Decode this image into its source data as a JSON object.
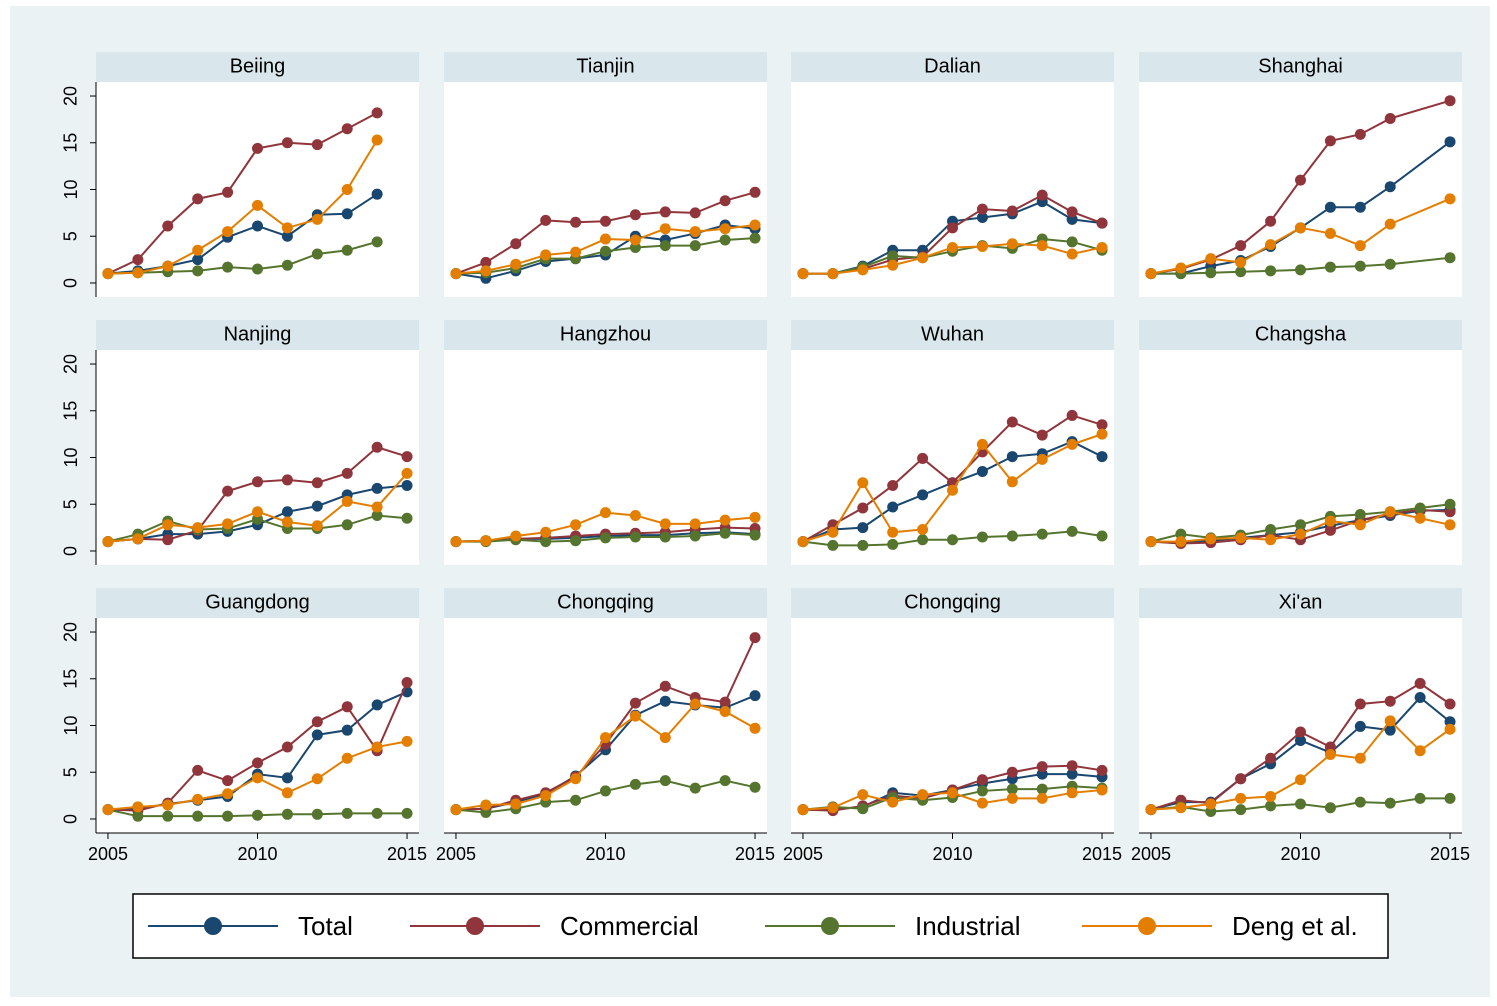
{
  "chart_data": [
    {
      "type": "line",
      "title": "Beiing",
      "x": [
        2005,
        2006,
        2007,
        2008,
        2009,
        2010,
        2011,
        2012,
        2013,
        2014
      ],
      "xlim": [
        2004.6,
        2015.4
      ],
      "ylim": [
        -1.5,
        21.5
      ],
      "yticks": [
        0,
        5,
        10,
        15,
        20
      ],
      "series": [
        {
          "name": "Total",
          "color": "#1a476f",
          "values": [
            1,
            1.3,
            1.8,
            2.5,
            4.9,
            6.1,
            5.0,
            7.3,
            7.4,
            9.5
          ]
        },
        {
          "name": "Commercial",
          "color": "#90353b",
          "values": [
            1,
            2.5,
            6.1,
            9.0,
            9.7,
            14.4,
            15.0,
            14.8,
            16.5,
            18.2
          ]
        },
        {
          "name": "Industrial",
          "color": "#55752f",
          "values": [
            1,
            1.1,
            1.2,
            1.3,
            1.7,
            1.5,
            1.9,
            3.1,
            3.5,
            4.4
          ]
        },
        {
          "name": "Deng et al.",
          "color": "#e37e00",
          "values": [
            1,
            1.1,
            1.8,
            3.5,
            5.5,
            8.3,
            5.9,
            6.8,
            10.0,
            15.3
          ]
        }
      ]
    },
    {
      "type": "line",
      "title": "Tianjin",
      "x": [
        2005,
        2006,
        2007,
        2008,
        2009,
        2010,
        2011,
        2012,
        2013,
        2014,
        2015
      ],
      "xlim": [
        2004.6,
        2015.4
      ],
      "ylim": [
        -1.5,
        21.5
      ],
      "series": [
        {
          "name": "Total",
          "color": "#1a476f",
          "values": [
            1,
            0.5,
            1.3,
            2.3,
            2.6,
            3.0,
            5.0,
            4.6,
            5.3,
            6.2,
            5.8
          ]
        },
        {
          "name": "Commercial",
          "color": "#90353b",
          "values": [
            1,
            2.2,
            4.2,
            6.7,
            6.5,
            6.6,
            7.3,
            7.6,
            7.5,
            8.8,
            9.7
          ]
        },
        {
          "name": "Industrial",
          "color": "#55752f",
          "values": [
            1,
            1.1,
            1.6,
            2.6,
            2.6,
            3.4,
            3.8,
            4.0,
            4.0,
            4.6,
            4.8
          ]
        },
        {
          "name": "Deng et al.",
          "color": "#e37e00",
          "values": [
            1,
            1.3,
            2.0,
            3.0,
            3.3,
            4.7,
            4.6,
            5.8,
            5.5,
            5.8,
            6.2
          ]
        }
      ]
    },
    {
      "type": "line",
      "title": "Dalian",
      "x": [
        2005,
        2006,
        2007,
        2008,
        2009,
        2010,
        2011,
        2012,
        2013,
        2014,
        2015
      ],
      "xlim": [
        2004.6,
        2015.4
      ],
      "ylim": [
        -1.5,
        21.5
      ],
      "series": [
        {
          "name": "Total",
          "color": "#1a476f",
          "values": [
            1,
            1,
            1.8,
            3.5,
            3.5,
            6.6,
            7.0,
            7.4,
            8.7,
            6.8,
            6.4
          ]
        },
        {
          "name": "Commercial",
          "color": "#90353b",
          "values": [
            1,
            1,
            1.5,
            2.5,
            2.8,
            5.9,
            7.9,
            7.7,
            9.4,
            7.6,
            6.4
          ]
        },
        {
          "name": "Industrial",
          "color": "#55752f",
          "values": [
            1,
            1,
            1.7,
            2.9,
            2.7,
            3.4,
            4.0,
            3.7,
            4.7,
            4.4,
            3.5
          ]
        },
        {
          "name": "Deng et al.",
          "color": "#e37e00",
          "values": [
            1,
            1,
            1.4,
            1.9,
            2.7,
            3.8,
            3.9,
            4.2,
            4.0,
            3.1,
            3.8
          ]
        }
      ]
    },
    {
      "type": "line",
      "title": "Shanghai",
      "x": [
        2005,
        2006,
        2007,
        2008,
        2009,
        2010,
        2011,
        2012,
        2013,
        2015
      ],
      "xlim": [
        2004.6,
        2015.4
      ],
      "ylim": [
        -1.5,
        21.5
      ],
      "series": [
        {
          "name": "Total",
          "color": "#1a476f",
          "values": [
            1,
            1.0,
            1.8,
            2.4,
            3.9,
            5.9,
            8.1,
            8.1,
            10.3,
            15.1
          ]
        },
        {
          "name": "Commercial",
          "color": "#90353b",
          "values": [
            1,
            1.5,
            2.5,
            4.0,
            6.6,
            11.0,
            15.2,
            15.9,
            17.6,
            19.5
          ]
        },
        {
          "name": "Industrial",
          "color": "#55752f",
          "values": [
            1,
            1.0,
            1.1,
            1.2,
            1.3,
            1.4,
            1.7,
            1.8,
            2.0,
            2.7
          ]
        },
        {
          "name": "Deng et al.",
          "color": "#e37e00",
          "values": [
            1,
            1.6,
            2.6,
            2.2,
            4.1,
            5.9,
            5.3,
            4.0,
            6.3,
            9.0
          ]
        }
      ]
    },
    {
      "type": "line",
      "title": "Nanjing",
      "x": [
        2005,
        2006,
        2007,
        2008,
        2009,
        2010,
        2011,
        2012,
        2013,
        2014,
        2015
      ],
      "xlim": [
        2004.6,
        2015.4
      ],
      "ylim": [
        -1.5,
        21.5
      ],
      "yticks": [
        0,
        5,
        10,
        15,
        20
      ],
      "series": [
        {
          "name": "Total",
          "color": "#1a476f",
          "values": [
            1,
            1.3,
            1.8,
            1.8,
            2.1,
            2.8,
            4.2,
            4.8,
            6.0,
            6.7,
            7.0
          ]
        },
        {
          "name": "Commercial",
          "color": "#90353b",
          "values": [
            1,
            1.3,
            1.2,
            2.2,
            6.4,
            7.4,
            7.6,
            7.3,
            8.3,
            11.1,
            10.1
          ]
        },
        {
          "name": "Industrial",
          "color": "#55752f",
          "values": [
            1,
            1.8,
            3.2,
            2.3,
            2.4,
            3.4,
            2.4,
            2.4,
            2.8,
            3.8,
            3.5
          ]
        },
        {
          "name": "Deng et al.",
          "color": "#e37e00",
          "values": [
            1,
            1.3,
            2.8,
            2.5,
            2.9,
            4.2,
            3.1,
            2.7,
            5.3,
            4.7,
            8.3
          ]
        }
      ]
    },
    {
      "type": "line",
      "title": "Hangzhou",
      "x": [
        2005,
        2006,
        2007,
        2008,
        2009,
        2010,
        2011,
        2012,
        2013,
        2014,
        2015
      ],
      "xlim": [
        2004.6,
        2015.4
      ],
      "ylim": [
        -1.5,
        21.5
      ],
      "series": [
        {
          "name": "Total",
          "color": "#1a476f",
          "values": [
            1,
            1.1,
            1.3,
            1.3,
            1.4,
            1.6,
            1.7,
            1.7,
            1.9,
            2.0,
            1.8
          ]
        },
        {
          "name": "Commercial",
          "color": "#90353b",
          "values": [
            1,
            1.1,
            1.3,
            1.4,
            1.6,
            1.8,
            1.9,
            2.0,
            2.3,
            2.5,
            2.4
          ]
        },
        {
          "name": "Industrial",
          "color": "#55752f",
          "values": [
            1,
            1.0,
            1.2,
            1.0,
            1.1,
            1.4,
            1.5,
            1.5,
            1.6,
            1.9,
            1.7
          ]
        },
        {
          "name": "Deng et al.",
          "color": "#e37e00",
          "values": [
            1,
            1.1,
            1.6,
            2.0,
            2.8,
            4.1,
            3.8,
            2.9,
            2.9,
            3.3,
            3.6
          ]
        }
      ]
    },
    {
      "type": "line",
      "title": "Wuhan",
      "x": [
        2005,
        2006,
        2007,
        2008,
        2009,
        2010,
        2011,
        2012,
        2013,
        2014,
        2015
      ],
      "xlim": [
        2004.6,
        2015.4
      ],
      "ylim": [
        -1.5,
        21.5
      ],
      "series": [
        {
          "name": "Total",
          "color": "#1a476f",
          "values": [
            1,
            2.3,
            2.5,
            4.7,
            6.0,
            7.3,
            8.5,
            10.1,
            10.4,
            11.7,
            10.1
          ]
        },
        {
          "name": "Commercial",
          "color": "#90353b",
          "values": [
            1,
            2.8,
            4.6,
            7.0,
            9.9,
            7.3,
            10.6,
            13.8,
            12.4,
            14.5,
            13.5
          ]
        },
        {
          "name": "Industrial",
          "color": "#55752f",
          "values": [
            1,
            0.6,
            0.6,
            0.7,
            1.2,
            1.2,
            1.5,
            1.6,
            1.8,
            2.1,
            1.6
          ]
        },
        {
          "name": "Deng et al.",
          "color": "#e37e00",
          "values": [
            1,
            2.0,
            7.3,
            2.0,
            2.3,
            6.5,
            11.4,
            7.4,
            9.8,
            11.4,
            12.5
          ]
        }
      ]
    },
    {
      "type": "line",
      "title": "Changsha",
      "x": [
        2005,
        2006,
        2007,
        2008,
        2009,
        2010,
        2011,
        2012,
        2013,
        2014,
        2015
      ],
      "xlim": [
        2004.6,
        2015.4
      ],
      "ylim": [
        -1.5,
        21.5
      ],
      "series": [
        {
          "name": "Total",
          "color": "#1a476f",
          "values": [
            1,
            0.9,
            1.1,
            1.4,
            1.7,
            2.0,
            2.7,
            3.3,
            3.8,
            4.3,
            4.4
          ]
        },
        {
          "name": "Commercial",
          "color": "#90353b",
          "values": [
            1,
            0.8,
            0.9,
            1.2,
            1.7,
            1.2,
            2.2,
            3.3,
            4.0,
            4.4,
            4.2
          ]
        },
        {
          "name": "Industrial",
          "color": "#55752f",
          "values": [
            1,
            1.8,
            1.4,
            1.7,
            2.3,
            2.8,
            3.7,
            3.9,
            4.2,
            4.6,
            5.0
          ]
        },
        {
          "name": "Deng et al.",
          "color": "#e37e00",
          "values": [
            1,
            1.0,
            1.3,
            1.4,
            1.2,
            1.8,
            3.2,
            2.8,
            4.2,
            3.5,
            2.8
          ]
        }
      ]
    },
    {
      "type": "line",
      "title": "Guangdong",
      "x": [
        2005,
        2006,
        2007,
        2008,
        2009,
        2010,
        2011,
        2012,
        2013,
        2014,
        2015
      ],
      "xlim": [
        2004.6,
        2015.4
      ],
      "ylim": [
        -1.5,
        21.5
      ],
      "yticks": [
        0,
        5,
        10,
        15,
        20
      ],
      "xticks": [
        2005,
        2010,
        2015
      ],
      "series": [
        {
          "name": "Total",
          "color": "#1a476f",
          "values": [
            1,
            1.1,
            1.6,
            2.0,
            2.4,
            4.8,
            4.4,
            9.0,
            9.5,
            12.2,
            13.6
          ]
        },
        {
          "name": "Commercial",
          "color": "#90353b",
          "values": [
            1,
            0.9,
            1.7,
            5.2,
            4.1,
            6.0,
            7.7,
            10.4,
            12.0,
            7.3,
            14.6
          ]
        },
        {
          "name": "Industrial",
          "color": "#55752f",
          "values": [
            1,
            0.3,
            0.3,
            0.3,
            0.3,
            0.4,
            0.5,
            0.5,
            0.6,
            0.6,
            0.6
          ]
        },
        {
          "name": "Deng et al.",
          "color": "#e37e00",
          "values": [
            1,
            1.3,
            1.5,
            2.1,
            2.7,
            4.4,
            2.8,
            4.3,
            6.5,
            7.7,
            8.3
          ]
        }
      ]
    },
    {
      "type": "line",
      "title": "Chongqing",
      "x": [
        2005,
        2006,
        2007,
        2008,
        2009,
        2010,
        2011,
        2012,
        2013,
        2014,
        2015
      ],
      "xlim": [
        2004.6,
        2015.4
      ],
      "ylim": [
        -1.5,
        21.5
      ],
      "xticks": [
        2005,
        2010,
        2015
      ],
      "series": [
        {
          "name": "Total",
          "color": "#1a476f",
          "values": [
            1,
            1.1,
            1.8,
            2.7,
            4.6,
            7.4,
            11.1,
            12.6,
            12.2,
            11.9,
            13.2
          ]
        },
        {
          "name": "Commercial",
          "color": "#90353b",
          "values": [
            1,
            1.1,
            2.0,
            2.8,
            4.5,
            8.0,
            12.4,
            14.2,
            13.0,
            12.5,
            19.4
          ]
        },
        {
          "name": "Industrial",
          "color": "#55752f",
          "values": [
            1,
            0.7,
            1.1,
            1.8,
            2.0,
            3.0,
            3.7,
            4.1,
            3.3,
            4.1,
            3.4
          ]
        },
        {
          "name": "Deng et al.",
          "color": "#e37e00",
          "values": [
            1,
            1.5,
            1.6,
            2.5,
            4.3,
            8.7,
            11.0,
            8.7,
            12.3,
            11.5,
            9.7
          ]
        }
      ]
    },
    {
      "type": "line",
      "title": "Chongqing",
      "x": [
        2005,
        2006,
        2007,
        2008,
        2009,
        2010,
        2011,
        2012,
        2013,
        2014,
        2015
      ],
      "xlim": [
        2004.6,
        2015.4
      ],
      "ylim": [
        -1.5,
        21.5
      ],
      "xticks": [
        2005,
        2010,
        2015
      ],
      "series": [
        {
          "name": "Total",
          "color": "#1a476f",
          "values": [
            1,
            1.0,
            1.3,
            2.8,
            2.5,
            3.1,
            3.8,
            4.3,
            4.8,
            4.8,
            4.5
          ]
        },
        {
          "name": "Commercial",
          "color": "#90353b",
          "values": [
            1,
            0.9,
            1.4,
            2.5,
            2.2,
            3.1,
            4.2,
            5.0,
            5.6,
            5.7,
            5.2
          ]
        },
        {
          "name": "Industrial",
          "color": "#55752f",
          "values": [
            1,
            1.3,
            1.1,
            2.3,
            2.0,
            2.3,
            3.0,
            3.2,
            3.2,
            3.5,
            3.3
          ]
        },
        {
          "name": "Deng et al.",
          "color": "#e37e00",
          "values": [
            1,
            1.2,
            2.6,
            1.8,
            2.6,
            2.8,
            1.7,
            2.2,
            2.2,
            2.8,
            3.1
          ]
        }
      ]
    },
    {
      "type": "line",
      "title": "Xi'an",
      "x": [
        2005,
        2006,
        2007,
        2008,
        2009,
        2010,
        2011,
        2012,
        2013,
        2014,
        2015
      ],
      "xlim": [
        2004.6,
        2015.4
      ],
      "ylim": [
        -1.5,
        21.5
      ],
      "xticks": [
        2005,
        2010,
        2015
      ],
      "series": [
        {
          "name": "Total",
          "color": "#1a476f",
          "values": [
            1,
            1.8,
            1.8,
            4.3,
            5.9,
            8.4,
            7.1,
            9.9,
            9.5,
            13.0,
            10.4
          ]
        },
        {
          "name": "Commercial",
          "color": "#90353b",
          "values": [
            1,
            2.0,
            1.7,
            4.3,
            6.5,
            9.3,
            7.7,
            12.3,
            12.6,
            14.5,
            12.3
          ]
        },
        {
          "name": "Industrial",
          "color": "#55752f",
          "values": [
            1,
            1.3,
            0.8,
            1.0,
            1.4,
            1.6,
            1.2,
            1.8,
            1.7,
            2.2,
            2.2
          ]
        },
        {
          "name": "Deng et al.",
          "color": "#e37e00",
          "values": [
            1,
            1.2,
            1.6,
            2.2,
            2.4,
            4.2,
            6.9,
            6.5,
            10.5,
            7.3,
            9.6
          ]
        }
      ]
    }
  ]
}
